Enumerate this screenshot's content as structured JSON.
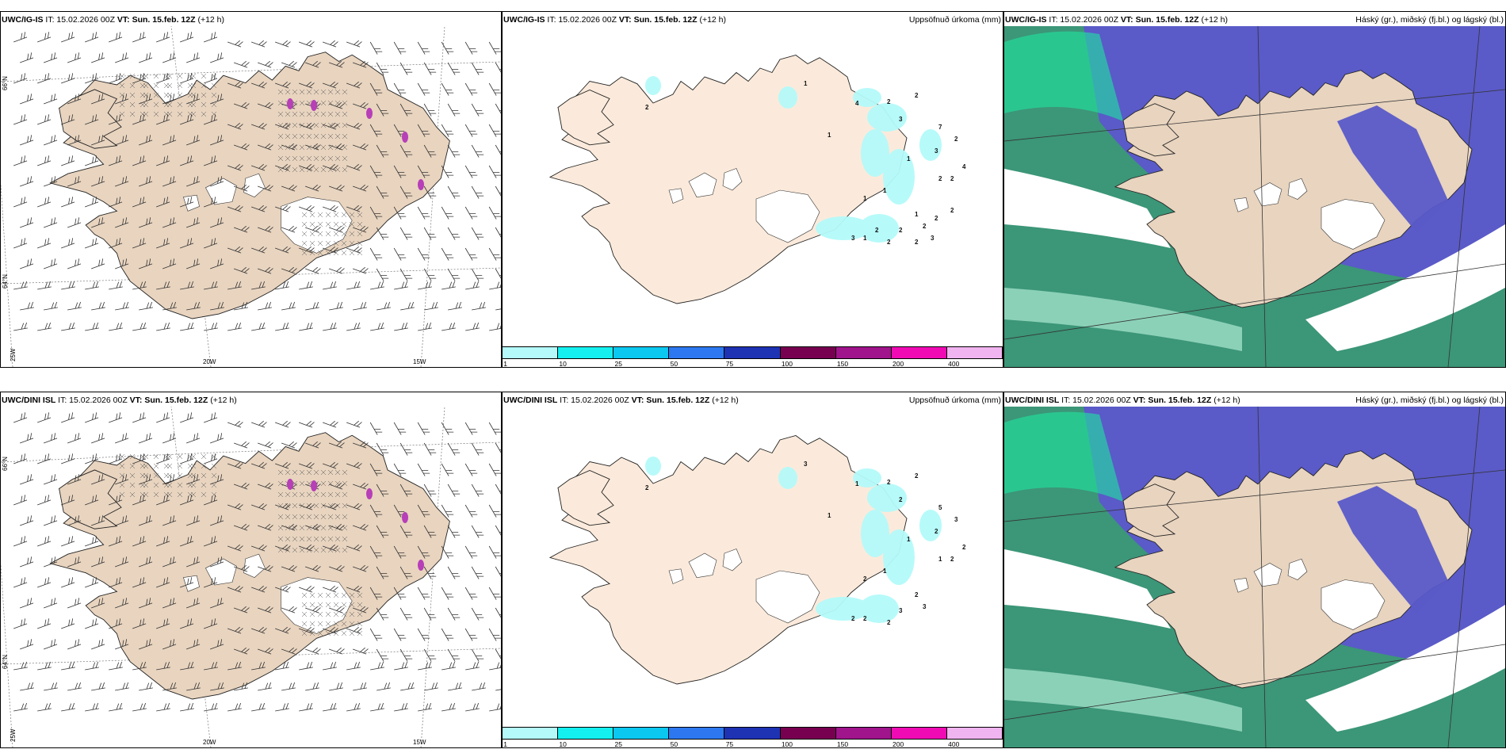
{
  "rows": [
    {
      "model_label": "UWC/IG-IS",
      "it_text": "IT: 15.02.2026 00Z",
      "vt_label": "VT: Sun. 15.feb. 12Z",
      "lead": "(+12 h)",
      "precip_numbers": [
        "2",
        "1",
        "4",
        "2",
        "2",
        "3",
        "1",
        "7",
        "1",
        "2",
        "3",
        "4",
        "1",
        "2",
        "2",
        "1",
        "1",
        "3",
        "1",
        "2",
        "2",
        "2",
        "2",
        "2",
        "3",
        "2",
        "2"
      ],
      "cloud_field": "ig"
    },
    {
      "model_label": "UWC/DINI ISL",
      "it_text": "IT: 15.02.2026 00Z",
      "vt_label": "VT: Sun. 15.feb. 12Z",
      "lead": "(+12 h)",
      "precip_numbers": [
        "2",
        "3",
        "1",
        "2",
        "2",
        "2",
        "1",
        "5",
        "1",
        "3",
        "2",
        "2",
        "1",
        "1",
        "2",
        "2",
        "2",
        "2",
        "2",
        "3",
        "2",
        "3"
      ],
      "cloud_field": "dini"
    }
  ],
  "precip_title": "Uppsöfnuð úrkoma (mm)",
  "cloud_title": "Háský (gr.), miðský (fj.bl.) og lágský (bl.)",
  "colorbar": {
    "labels": [
      "1",
      "10",
      "25",
      "50",
      "75",
      "100",
      "150",
      "200",
      "400"
    ],
    "colors": [
      "#b4fafa",
      "#14f0f0",
      "#0ac8f0",
      "#2d78f0",
      "#1e32b4",
      "#780050",
      "#a0148c",
      "#f00ab4",
      "#f0b4f0"
    ]
  },
  "axis_labels": {
    "lat_66": "66°N",
    "lat_64": "64°N",
    "lon_25w": "25W",
    "lon_20w": "20W",
    "lon_15w": "15W"
  },
  "colors": {
    "land_wind": "#e8d4bf",
    "land_precip": "#fbeadb",
    "land_cloud": "#e8d4bf",
    "cloud_high": "#5a5ac8",
    "cloud_mid": "#1ee6a0",
    "cloud_low": "#3c9678"
  }
}
